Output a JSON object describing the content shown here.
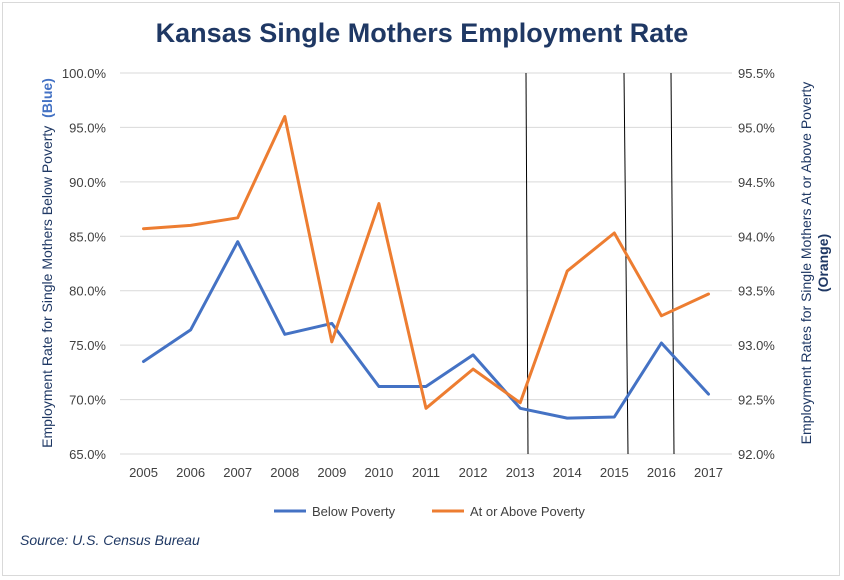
{
  "chart_data": {
    "type": "line",
    "title": "Kansas Single Mothers Employment Rate",
    "x": [
      "2005",
      "2006",
      "2007",
      "2008",
      "2009",
      "2010",
      "2011",
      "2012",
      "2013",
      "2014",
      "2015",
      "2016",
      "2017"
    ],
    "series": [
      {
        "name": "Below Poverty",
        "axis": "left",
        "color": "#4472c4",
        "values": [
          73.5,
          76.4,
          84.5,
          76.0,
          77.0,
          71.2,
          71.2,
          74.1,
          69.2,
          68.3,
          68.4,
          75.2,
          70.5
        ]
      },
      {
        "name": "At or Above Poverty",
        "axis": "right",
        "color": "#ed7d31",
        "values": [
          94.07,
          94.1,
          94.17,
          95.1,
          93.03,
          94.3,
          92.42,
          92.78,
          92.47,
          93.68,
          94.03,
          93.27,
          93.47
        ]
      }
    ],
    "yleft": {
      "label_main": "Employment Rate for Single Mothers Below Poverty",
      "label_tag": "(Blue)",
      "min": 65,
      "max": 100,
      "ticks": [
        "65.0%",
        "70.0%",
        "75.0%",
        "80.0%",
        "85.0%",
        "90.0%",
        "95.0%",
        "100.0%"
      ]
    },
    "yright": {
      "label_line1": "Employment Rates for Single Mothers At or Above Poverty",
      "label_line2": "(Orange)",
      "min": 92.0,
      "max": 95.5,
      "ticks": [
        "92.0%",
        "92.5%",
        "93.0%",
        "93.5%",
        "94.0%",
        "94.5%",
        "95.0%",
        "95.5%"
      ]
    },
    "grid": true,
    "legend_position": "bottom",
    "source": "Source: U.S. Census Bureau"
  },
  "colors": {
    "title": "#1f3864",
    "blue": "#4472c4",
    "orange": "#ed7d31",
    "grid": "#d9d9d9"
  }
}
